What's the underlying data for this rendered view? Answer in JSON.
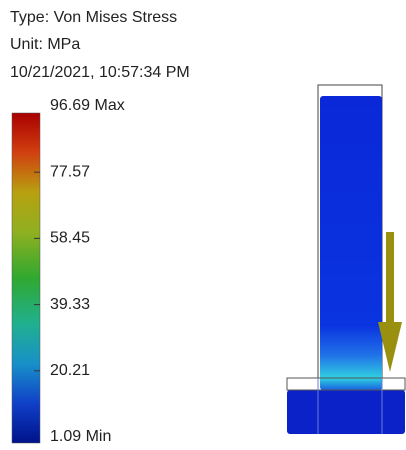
{
  "header": {
    "type": "Type: Von Mises Stress",
    "unit": "Unit: MPa",
    "date": "10/21/2021, 10:57:34 PM"
  },
  "legend": {
    "labels": [
      "96.69 Max",
      "77.57",
      "58.45",
      "39.33",
      "20.21",
      "1.09 Min"
    ]
  }
}
